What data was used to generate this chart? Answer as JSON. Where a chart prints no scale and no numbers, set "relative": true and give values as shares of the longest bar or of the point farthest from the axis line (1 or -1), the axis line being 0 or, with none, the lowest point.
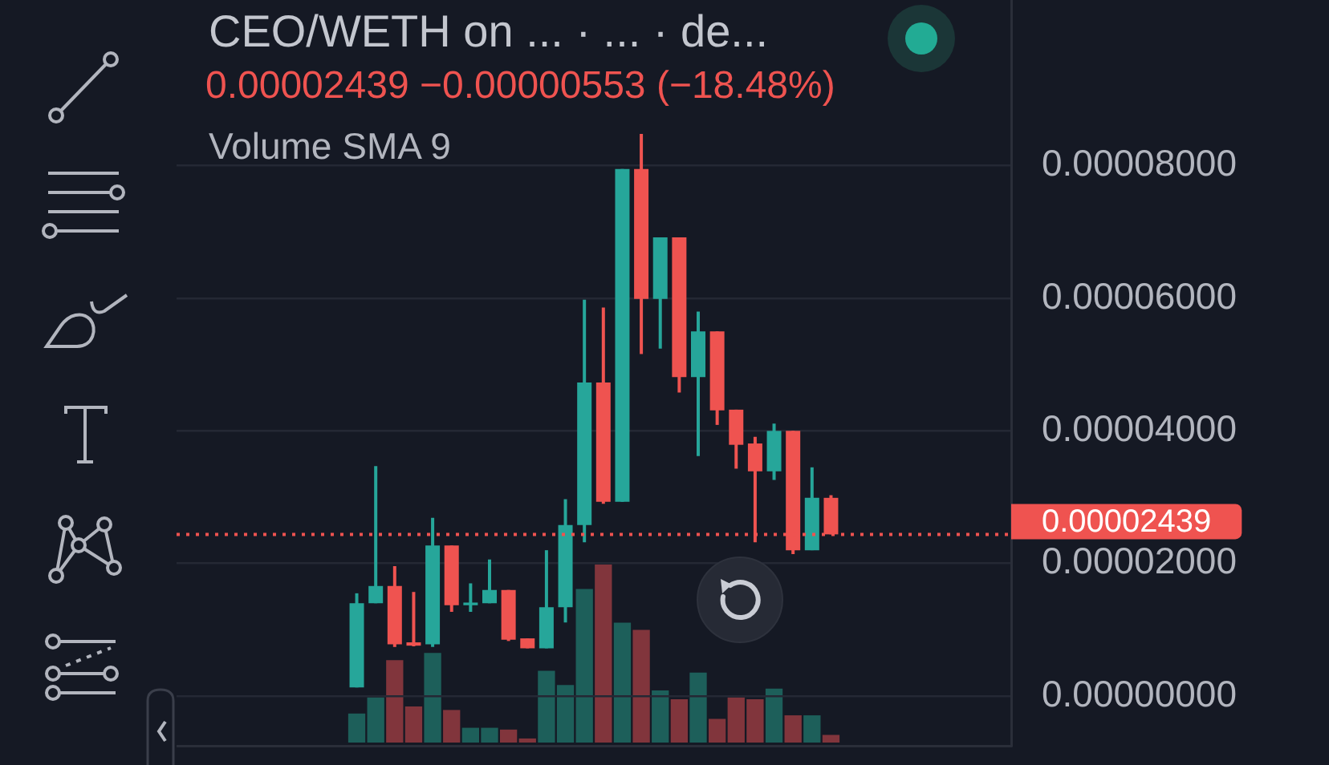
{
  "chart_data": [
    {
      "type": "candlestick",
      "title": "CEO/WETH on ... · ... · de...",
      "subtitle": "0.00002439 −0.00000553 (−18.48%)",
      "categories": [
        null,
        null,
        null,
        null,
        null,
        null,
        null,
        null,
        null,
        null,
        null,
        null,
        null,
        null,
        null,
        null,
        null,
        null,
        null,
        null,
        null,
        null,
        null,
        null,
        null,
        null,
        null,
        null,
        null,
        null,
        null,
        null,
        null,
        null,
        null,
        null,
        null,
        null,
        null,
        null,
        null,
        null,
        null,
        null
      ],
      "ohlc": [
        null,
        null,
        null,
        null,
        null,
        null,
        null,
        null,
        null,
        [
          1.3e-06,
          1.55e-05,
          1.3e-06,
          1.4e-05
        ],
        [
          1.4e-05,
          3.47e-05,
          1.4e-05,
          1.66e-05
        ],
        [
          1.66e-05,
          1.96e-05,
          7.4e-06,
          7.8e-06
        ],
        [
          8.1e-06,
          1.57e-05,
          7.5e-06,
          7.6e-06
        ],
        [
          7.8e-06,
          2.69e-05,
          7.4e-06,
          2.27e-05
        ],
        [
          2.27e-05,
          2.27e-05,
          1.27e-05,
          1.37e-05
        ],
        [
          1.37e-05,
          1.7e-05,
          1.27e-05,
          1.41e-05
        ],
        [
          1.4e-05,
          2.06e-05,
          1.4e-05,
          1.6e-05
        ],
        [
          1.6e-05,
          1.6e-05,
          8.3e-06,
          8.5e-06
        ],
        [
          8.7e-06,
          8.7e-06,
          7.2e-06,
          7.2e-06
        ],
        [
          7.2e-06,
          2.2e-05,
          7.2e-06,
          1.34e-05
        ],
        [
          1.34e-05,
          2.97e-05,
          1.11e-05,
          2.58e-05
        ],
        [
          2.58e-05,
          5.98e-05,
          2.32e-05,
          4.73e-05
        ],
        [
          4.73e-05,
          5.86e-05,
          2.9e-05,
          2.93e-05
        ],
        [
          2.93e-05,
          7.95e-05,
          2.93e-05,
          7.95e-05
        ],
        [
          7.95e-05,
          8.48e-05,
          5.16e-05,
          5.99e-05
        ],
        [
          5.99e-05,
          6.92e-05,
          5.24e-05,
          6.92e-05
        ],
        [
          6.92e-05,
          6.92e-05,
          4.58e-05,
          4.81e-05
        ],
        [
          4.81e-05,
          5.8e-05,
          3.62e-05,
          5.5e-05
        ],
        [
          5.5e-05,
          5.5e-05,
          4.09e-05,
          4.31e-05
        ],
        [
          4.32e-05,
          4.32e-05,
          3.43e-05,
          3.79e-05
        ],
        [
          3.81e-05,
          3.91e-05,
          2.32e-05,
          3.39e-05
        ],
        [
          3.39e-05,
          4.11e-05,
          3.26e-05,
          4e-05
        ],
        [
          4e-05,
          4e-05,
          2.14e-05,
          2.2e-05
        ],
        [
          2.2e-05,
          3.45e-05,
          2.2e-05,
          2.99e-05
        ],
        [
          2.99e-05,
          3.03e-05,
          2.439e-05,
          2.439e-05
        ],
        null,
        null,
        null,
        null,
        null,
        null,
        null,
        null,
        null
      ],
      "colors": [
        null,
        null,
        null,
        null,
        null,
        null,
        null,
        null,
        null,
        "#26a69a",
        "#26a69a",
        "#ef5350",
        "#ef5350",
        "#26a69a",
        "#ef5350",
        "#26a69a",
        "#26a69a",
        "#ef5350",
        "#ef5350",
        "#26a69a",
        "#26a69a",
        "#26a69a",
        "#ef5350",
        "#26a69a",
        "#ef5350",
        "#26a69a",
        "#ef5350",
        "#26a69a",
        "#ef5350",
        "#ef5350",
        "#ef5350",
        "#26a69a",
        "#ef5350",
        "#26a69a",
        "#ef5350",
        null,
        null,
        null,
        null,
        null,
        null,
        null,
        null,
        null
      ],
      "ylim": [
        -7.5e-06,
        0.000105
      ],
      "yticks": [
        {
          "value": 0,
          "label": "0.00000000"
        },
        {
          "value": 2e-05,
          "label": "0.00002000"
        },
        {
          "value": 4e-05,
          "label": "0.00004000"
        },
        {
          "value": 6e-05,
          "label": "0.00006000"
        },
        {
          "value": 8e-05,
          "label": "0.00008000"
        }
      ],
      "grid": "y",
      "tick_labels": "y",
      "ref_lines": [
        {
          "axis": "y",
          "value": 2.439e-05,
          "label": "0.00002439",
          "color": "#ef5350",
          "line_style": "dotted"
        }
      ]
    },
    {
      "type": "bar",
      "title": "Volume SMA 9",
      "relative": true,
      "tick_labels": false,
      "categories": [
        null,
        null,
        null,
        null,
        null,
        null,
        null,
        null,
        null,
        null,
        null,
        null,
        null,
        null,
        null,
        null,
        null,
        null,
        null,
        null,
        null,
        null,
        null,
        null,
        null,
        null,
        null,
        null,
        null,
        null,
        null,
        null,
        null,
        null,
        null,
        null,
        null,
        null,
        null,
        null,
        null,
        null,
        null,
        null
      ],
      "values": [
        null,
        null,
        null,
        null,
        null,
        null,
        null,
        null,
        null,
        0.16,
        0.25,
        0.46,
        0.2,
        0.5,
        0.18,
        0.08,
        0.08,
        0.07,
        0.02,
        0.4,
        0.32,
        0.86,
        1,
        0.67,
        0.63,
        0.29,
        0.24,
        0.39,
        0.13,
        0.25,
        0.24,
        0.3,
        0.15,
        0.15,
        0.04,
        null,
        null,
        null,
        null,
        null,
        null,
        null,
        null,
        null
      ],
      "colors": [
        null,
        null,
        null,
        null,
        null,
        null,
        null,
        null,
        null,
        "#1d5f5a",
        "#1d5f5a",
        "#81353c",
        "#81353c",
        "#1d5f5a",
        "#81353c",
        "#1d5f5a",
        "#1d5f5a",
        "#81353c",
        "#81353c",
        "#1d5f5a",
        "#1d5f5a",
        "#1d5f5a",
        "#81353c",
        "#1d5f5a",
        "#81353c",
        "#1d5f5a",
        "#81353c",
        "#1d5f5a",
        "#81353c",
        "#81353c",
        "#81353c",
        "#1d5f5a",
        "#81353c",
        "#1d5f5a",
        "#81353c",
        null,
        null,
        null,
        null,
        null,
        null,
        null,
        null,
        null
      ]
    }
  ]
}
